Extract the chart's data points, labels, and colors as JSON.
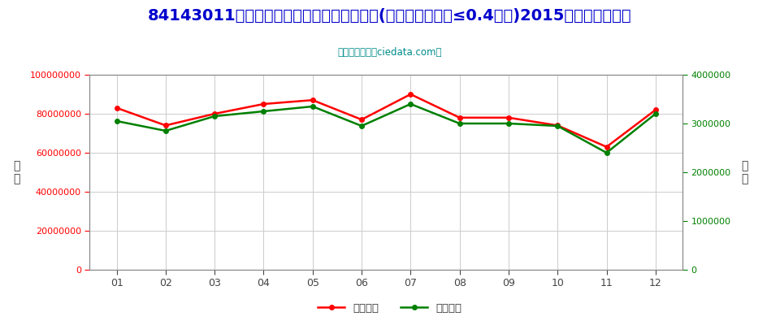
{
  "title": "84143011小型电驱动冷藏或冷冻箱用压缩机(电动机额定功率≤0.4千瓦)2015年出口月度走势",
  "subtitle": "进出口服务网（ciedata.com）",
  "months": [
    "01",
    "02",
    "03",
    "04",
    "05",
    "06",
    "07",
    "08",
    "09",
    "10",
    "11",
    "12"
  ],
  "export_usd": [
    83000000,
    74000000,
    80000000,
    85000000,
    87000000,
    77000000,
    90000000,
    78000000,
    78000000,
    74000000,
    63000000,
    82000000
  ],
  "export_qty": [
    3050000,
    2850000,
    3150000,
    3250000,
    3350000,
    2950000,
    3400000,
    3000000,
    3000000,
    2950000,
    2400000,
    3200000
  ],
  "usd_color": "#FF0000",
  "qty_color": "#008000",
  "usd_label": "出口美元",
  "qty_label": "出口数量",
  "left_ylabel": "金\n额",
  "right_ylabel": "数\n量",
  "ylim_left": [
    0,
    100000000
  ],
  "ylim_right": [
    0,
    4000000
  ],
  "left_yticks": [
    0,
    20000000,
    40000000,
    60000000,
    80000000,
    100000000
  ],
  "right_yticks": [
    0,
    1000000,
    2000000,
    3000000,
    4000000
  ],
  "title_color": "#0000CD",
  "subtitle_color": "#008B8B",
  "left_tick_color": "#FF0000",
  "right_tick_color": "#008000",
  "bg_color": "#FFFFFF",
  "grid_color": "#CCCCCC"
}
